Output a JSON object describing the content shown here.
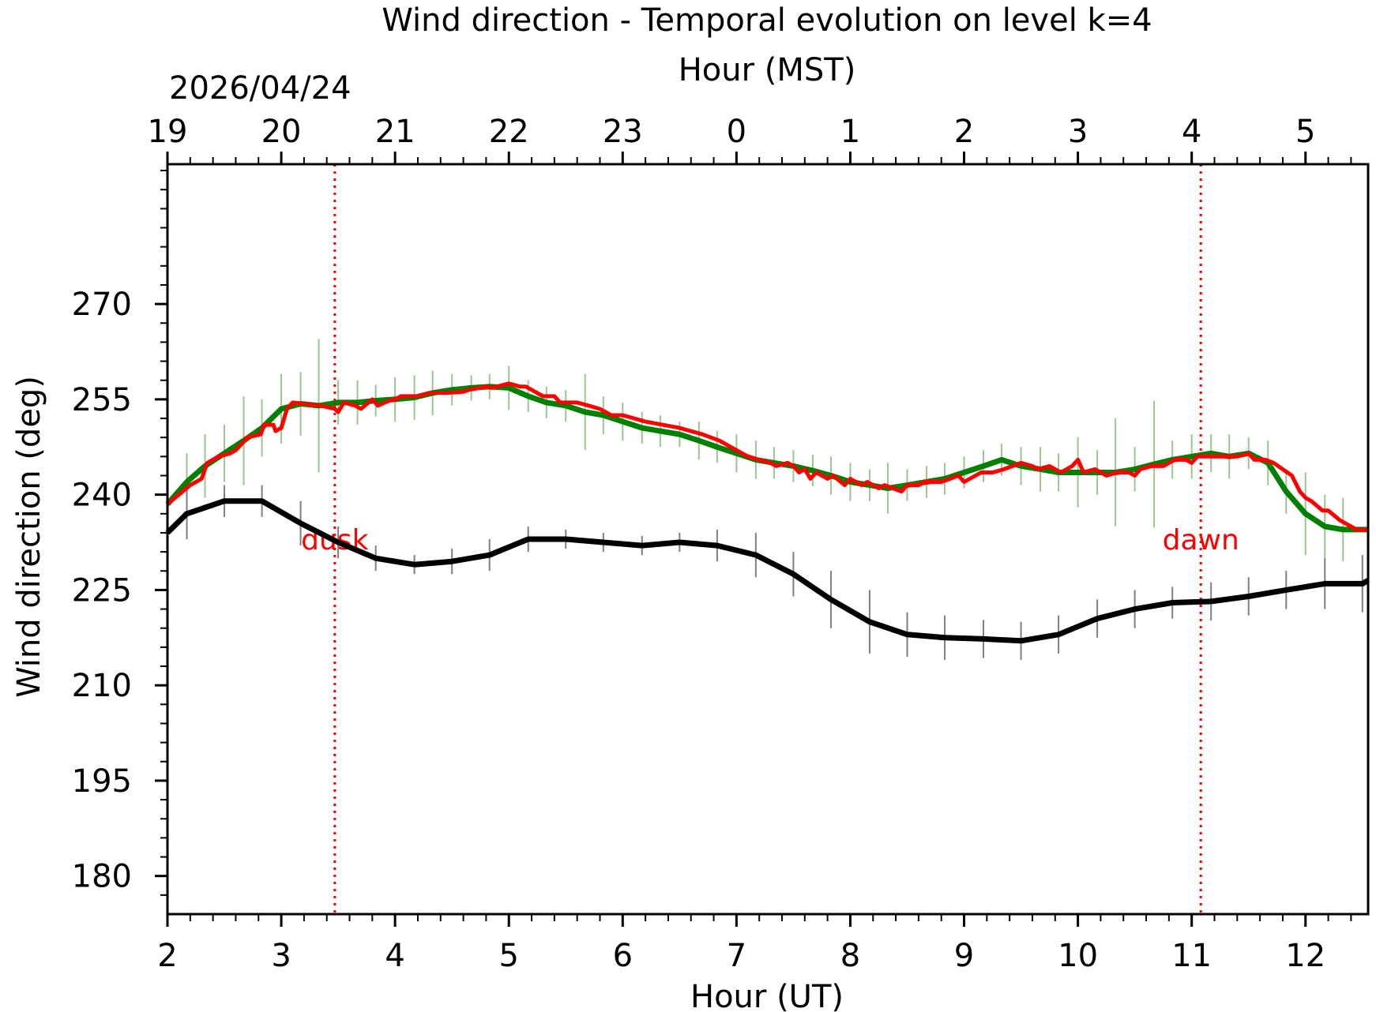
{
  "chart_data": {
    "type": "line",
    "title": "Wind direction - Temporal evolution on level k=4",
    "xlabel": "Hour (UT)",
    "x2label": "Hour (MST)",
    "ylabel": "Wind direction (deg)",
    "date": "2026/04/24",
    "xlim": [
      2,
      12.55
    ],
    "ylim": [
      174,
      292
    ],
    "x_ticks": [
      2,
      3,
      4,
      5,
      6,
      7,
      8,
      9,
      10,
      11,
      12
    ],
    "x_tick_labels": [
      "2",
      "3",
      "4",
      "5",
      "6",
      "7",
      "8",
      "9",
      "10",
      "11",
      "12"
    ],
    "x2_ticks": [
      2,
      3,
      4,
      5,
      6,
      7,
      8,
      9,
      10,
      11,
      12
    ],
    "x2_tick_labels": [
      "19",
      "20",
      "21",
      "22",
      "23",
      "0",
      "1",
      "2",
      "3",
      "4",
      "5"
    ],
    "y_ticks": [
      180,
      195,
      210,
      225,
      240,
      255,
      270
    ],
    "y_tick_labels": [
      "180",
      "195",
      "210",
      "225",
      "240",
      "255",
      "270"
    ],
    "grid": false,
    "annotations": [
      {
        "label": "dusk",
        "x": 3.47
      },
      {
        "label": "dawn",
        "x": 11.08
      }
    ],
    "colors": {
      "green": "#008000",
      "green_err": "#98c98a",
      "red": "#ff0000",
      "black": "#000000",
      "black_err": "#7f7f7f"
    },
    "series": [
      {
        "x": [
          2.0,
          2.17,
          2.33,
          2.5,
          2.67,
          2.83,
          3.0,
          3.17,
          3.33,
          3.5,
          3.67,
          3.83,
          4.0,
          4.17,
          4.33,
          4.5,
          4.67,
          4.83,
          5.0,
          5.17,
          5.33,
          5.5,
          5.67,
          5.83,
          6.0,
          6.17,
          6.33,
          6.5,
          6.67,
          6.83,
          7.0,
          7.17,
          7.33,
          7.5,
          7.67,
          7.83,
          8.0,
          8.17,
          8.33,
          8.5,
          8.67,
          8.83,
          9.0,
          9.17,
          9.33,
          9.5,
          9.67,
          9.83,
          10.0,
          10.17,
          10.33,
          10.5,
          10.67,
          10.83,
          11.0,
          11.17,
          11.33,
          11.5,
          11.67,
          11.83,
          12.0,
          12.17,
          12.33,
          12.55
        ],
        "values": [
          238.5,
          242.0,
          244.5,
          246.5,
          248.5,
          250.5,
          253.5,
          254.3,
          254.0,
          254.5,
          254.5,
          254.8,
          255.0,
          255.3,
          256.0,
          256.5,
          256.8,
          257.0,
          256.8,
          255.5,
          254.5,
          254.0,
          253.0,
          252.5,
          251.5,
          250.5,
          250.0,
          249.5,
          248.5,
          247.5,
          246.5,
          245.5,
          245.0,
          244.5,
          243.8,
          243.0,
          242.0,
          241.5,
          241.0,
          241.5,
          242.0,
          242.5,
          243.5,
          244.5,
          245.5,
          244.5,
          244.0,
          243.5,
          243.5,
          243.5,
          243.5,
          244.0,
          244.8,
          245.5,
          246.0,
          246.5,
          246.0,
          246.5,
          245.0,
          240.5,
          237.0,
          235.0,
          234.5,
          234.5
        ],
        "errors": [
          4.0,
          4.5,
          5.0,
          4.5,
          7.0,
          4.5,
          5.5,
          5.0,
          10.5,
          3.5,
          3.5,
          2.5,
          3.5,
          3.5,
          3.5,
          2.5,
          2.0,
          2.0,
          3.5,
          2.5,
          2.5,
          2.5,
          6.0,
          3.0,
          3.0,
          2.5,
          2.5,
          2.0,
          3.0,
          2.5,
          3.0,
          3.0,
          2.5,
          2.5,
          2.5,
          3.0,
          3.0,
          2.5,
          4.0,
          2.5,
          2.5,
          2.5,
          2.5,
          2.5,
          2.5,
          3.0,
          3.5,
          3.0,
          5.5,
          3.5,
          8.5,
          3.5,
          10.0,
          3.0,
          3.5,
          3.0,
          3.5,
          2.5,
          3.5,
          3.5,
          6.5,
          5.0,
          5.0,
          4.5
        ]
      },
      {
        "x": [
          2.0,
          2.1,
          2.2,
          2.3,
          2.35,
          2.45,
          2.55,
          2.6,
          2.68,
          2.7,
          2.82,
          2.85,
          2.93,
          2.95,
          3.0,
          3.05,
          3.1,
          3.2,
          3.35,
          3.47,
          3.5,
          3.55,
          3.65,
          3.7,
          3.8,
          3.85,
          3.95,
          4.0,
          4.05,
          4.15,
          4.2,
          4.3,
          4.45,
          4.6,
          4.65,
          4.8,
          4.85,
          5.0,
          5.1,
          5.15,
          5.3,
          5.4,
          5.45,
          5.6,
          5.7,
          5.8,
          5.9,
          6.0,
          6.1,
          6.2,
          6.35,
          6.5,
          6.6,
          6.7,
          6.85,
          7.0,
          7.1,
          7.2,
          7.3,
          7.35,
          7.45,
          7.5,
          7.55,
          7.6,
          7.65,
          7.7,
          7.8,
          7.85,
          7.95,
          8.0,
          8.1,
          8.15,
          8.25,
          8.3,
          8.45,
          8.5,
          8.6,
          8.65,
          8.8,
          8.95,
          9.0,
          9.15,
          9.25,
          9.35,
          9.5,
          9.6,
          9.65,
          9.75,
          9.85,
          9.95,
          10.0,
          10.05,
          10.15,
          10.25,
          10.35,
          10.45,
          10.5,
          10.55,
          10.65,
          10.75,
          10.85,
          10.95,
          11.0,
          11.05,
          11.15,
          11.25,
          11.4,
          11.5,
          11.55,
          11.65,
          11.72,
          11.8,
          11.88,
          11.95,
          12.0,
          12.05,
          12.15,
          12.2,
          12.3,
          12.35,
          12.45,
          12.55
        ],
        "values": [
          238.5,
          240.0,
          241.5,
          242.5,
          245.0,
          246.0,
          246.5,
          247.0,
          248.5,
          249.0,
          249.5,
          251.0,
          251.0,
          250.0,
          250.5,
          253.5,
          254.5,
          254.3,
          254.0,
          253.5,
          253.0,
          254.5,
          254.0,
          253.5,
          255.0,
          254.0,
          254.8,
          255.0,
          255.5,
          255.5,
          255.5,
          256.0,
          256.0,
          256.2,
          256.5,
          257.0,
          256.8,
          257.5,
          257.0,
          257.0,
          255.5,
          255.5,
          254.5,
          254.5,
          254.0,
          253.5,
          252.5,
          252.5,
          252.0,
          251.5,
          251.0,
          250.5,
          250.0,
          249.5,
          248.5,
          247.0,
          246.0,
          245.5,
          245.0,
          244.5,
          245.0,
          244.5,
          243.5,
          244.0,
          242.5,
          243.5,
          242.5,
          243.0,
          241.5,
          242.5,
          241.5,
          242.0,
          241.0,
          241.5,
          240.5,
          241.5,
          241.5,
          242.0,
          242.0,
          243.0,
          242.0,
          243.5,
          243.5,
          244.0,
          245.0,
          244.5,
          244.0,
          244.5,
          243.5,
          244.5,
          245.5,
          243.5,
          244.0,
          243.0,
          243.5,
          243.5,
          243.0,
          244.0,
          244.5,
          244.5,
          245.5,
          245.5,
          245.0,
          246.0,
          246.0,
          246.0,
          246.0,
          246.5,
          245.5,
          245.5,
          245.0,
          244.0,
          243.0,
          240.5,
          239.5,
          239.0,
          237.5,
          237.5,
          236.0,
          235.5,
          234.5,
          234.5
        ]
      },
      {
        "x": [
          2.0,
          2.17,
          2.5,
          2.83,
          3.17,
          3.5,
          3.83,
          4.17,
          4.5,
          4.83,
          5.17,
          5.5,
          5.83,
          6.17,
          6.5,
          6.83,
          7.17,
          7.5,
          7.83,
          8.17,
          8.5,
          8.83,
          9.17,
          9.5,
          9.83,
          10.17,
          10.5,
          10.83,
          11.17,
          11.5,
          11.83,
          12.17,
          12.5,
          12.55
        ],
        "values": [
          234.0,
          237.0,
          239.0,
          239.0,
          235.5,
          232.5,
          230.0,
          229.0,
          229.5,
          230.5,
          233.0,
          233.0,
          232.5,
          232.0,
          232.5,
          232.0,
          230.5,
          227.5,
          223.5,
          220.0,
          218.0,
          217.5,
          217.3,
          217.0,
          218.0,
          220.5,
          222.0,
          223.0,
          223.2,
          224.0,
          225.0,
          226.0,
          226.0,
          226.5
        ],
        "errors": [
          3.5,
          4.0,
          2.5,
          2.5,
          3.5,
          2.5,
          2.0,
          1.5,
          2.0,
          2.5,
          2.0,
          1.5,
          1.5,
          1.5,
          1.5,
          2.5,
          3.5,
          3.5,
          4.5,
          5.0,
          3.5,
          3.5,
          3.0,
          3.0,
          3.0,
          3.0,
          3.0,
          2.5,
          3.0,
          3.0,
          3.0,
          4.0,
          4.5,
          4.5
        ]
      }
    ]
  }
}
